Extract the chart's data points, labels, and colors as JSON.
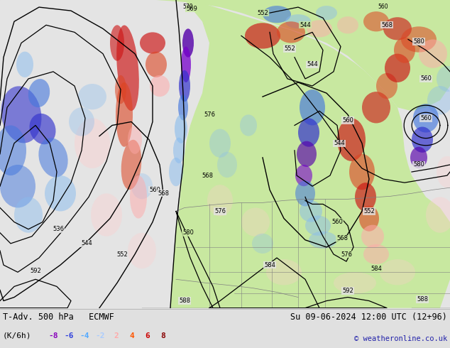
{
  "title_left": "T-Adv. 500 hPa   ECMWF",
  "title_right": "Su 09-06-2024 12:00 UTC (12+96)",
  "subtitle_left": "(K/6h)",
  "legend_values": [
    "-8",
    "-6",
    "-4",
    "-2",
    "2",
    "4",
    "6",
    "8"
  ],
  "legend_colors_neg": [
    "#8800bb",
    "#3333ff",
    "#55aaff",
    "#aaccff"
  ],
  "legend_colors_pos": [
    "#ffaaaa",
    "#ff5500",
    "#cc0000",
    "#880000"
  ],
  "copyright": "© weatheronline.co.uk",
  "bg_color": "#e0e0e0",
  "map_bg": "#e8e8e8",
  "ocean_color": "#e4e4e4",
  "land_green": "#c8e8a0",
  "bottom_bar_color": "#d8d8d8",
  "fig_width": 6.34,
  "fig_height": 4.9,
  "contour_color": "#000000",
  "border_color": "#808080"
}
